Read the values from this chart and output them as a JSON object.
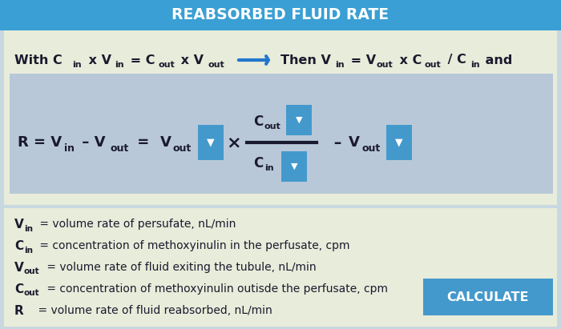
{
  "title": "REABSORBED FLUID RATE",
  "title_bg": "#3a9fd4",
  "top_bg": "#e8ecda",
  "inner_box_bg": "#b8c8d8",
  "bottom_bg": "#e8ecda",
  "blue_box_color": "#4499cc",
  "dark_text": "#1a1a2e",
  "arrow_color": "#2277cc",
  "calculate_bg": "#4499cc",
  "calculate_text": "CALCULATE",
  "definitions": [
    [
      "V",
      "in",
      " = volume rate of persufate, nL/min"
    ],
    [
      "C",
      "in",
      " = concentration of methoxyinulin in the perfusate, cpm"
    ],
    [
      "V",
      "out",
      " = volume rate of fluid exiting the tubule, nL/min"
    ],
    [
      "C",
      "out",
      " = concentration of methoxyinulin outisde the perfusate, cpm"
    ],
    [
      "R",
      "",
      " = volume rate of fluid reabsorbed, nL/min"
    ]
  ]
}
